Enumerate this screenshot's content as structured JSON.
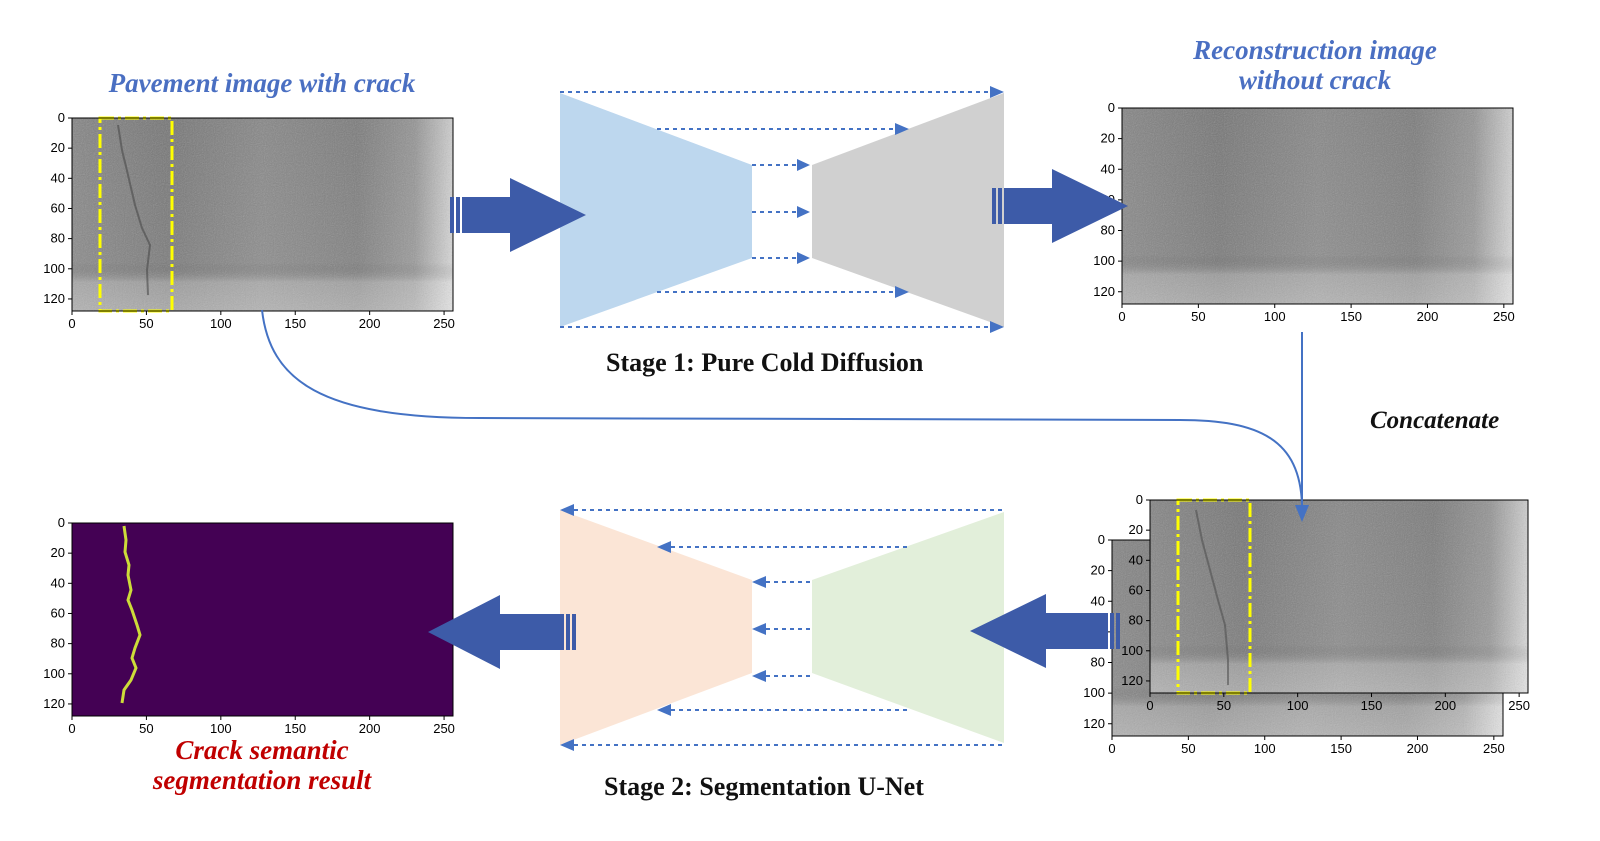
{
  "titles": {
    "pavement": "Pavement image with crack",
    "reconstruction_line1": "Reconstruction image",
    "reconstruction_line2": "without crack",
    "segmentation_line1": "Crack semantic",
    "segmentation_line2": "segmentation result"
  },
  "stages": {
    "stage1": "Stage 1: Pure Cold Diffusion",
    "stage2": "Stage 2: Segmentation U-Net"
  },
  "concat_label": "Concatenate",
  "axes": {
    "x_ticks": [
      "0",
      "50",
      "100",
      "150",
      "200",
      "250"
    ],
    "y_ticks": [
      "0",
      "20",
      "40",
      "60",
      "80",
      "100",
      "120"
    ]
  },
  "colors": {
    "arrow_blue": "#3d5ba8",
    "dotted_blue": "#4472c4",
    "encoder_blue": "#bdd7ee",
    "decoder_gray": "#d0d0d0",
    "encoder_green": "#e2efda",
    "decoder_peach": "#fbe5d6",
    "crack_box_yellow": "#ffff00",
    "seg_background": "#440154",
    "seg_crack": "#cddc39",
    "title_blue": "#4a6fc2",
    "title_red": "#c00000"
  }
}
